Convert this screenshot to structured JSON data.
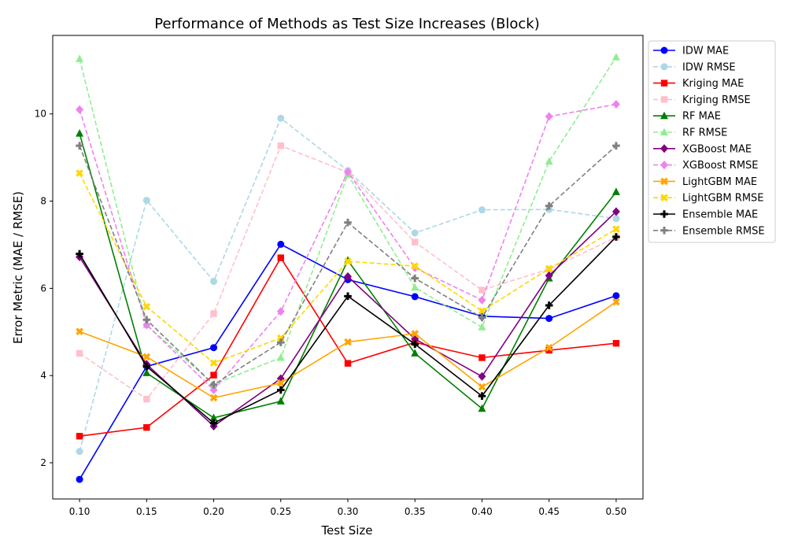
{
  "chart_data": {
    "type": "line",
    "title": "Performance of Methods as Test Size Increases (Block)",
    "xlabel": "Test Size",
    "ylabel": "Error Metric (MAE / RMSE)",
    "x": [
      0.1,
      0.15,
      0.2,
      0.25,
      0.3,
      0.35,
      0.4,
      0.45,
      0.5
    ],
    "x_tick_labels": [
      "0.10",
      "0.15",
      "0.20",
      "0.25",
      "0.30",
      "0.35",
      "0.40",
      "0.45",
      "0.50"
    ],
    "y_ticks": [
      2,
      4,
      6,
      8,
      10
    ],
    "xlim": [
      0.08,
      0.52
    ],
    "ylim": [
      1.17,
      11.8
    ],
    "grid": false,
    "legend_position": "outside-right-top",
    "series": [
      {
        "name": "IDW MAE",
        "color": "#0000ff",
        "dash": "solid",
        "marker": "circle",
        "values": [
          1.62,
          4.21,
          4.64,
          7.01,
          6.2,
          5.81,
          5.36,
          5.31,
          5.83
        ]
      },
      {
        "name": "IDW RMSE",
        "color": "#add8e6",
        "dash": "dashed",
        "marker": "circle",
        "values": [
          2.26,
          8.02,
          6.16,
          9.9,
          8.7,
          7.27,
          7.8,
          7.81,
          7.6
        ]
      },
      {
        "name": "Kriging MAE",
        "color": "#ff0000",
        "dash": "solid",
        "marker": "square",
        "values": [
          2.61,
          2.81,
          4.01,
          6.7,
          4.28,
          4.76,
          4.41,
          4.58,
          4.74
        ]
      },
      {
        "name": "Kriging RMSE",
        "color": "#ffc0cb",
        "dash": "dashed",
        "marker": "square",
        "values": [
          4.51,
          3.46,
          5.42,
          9.27,
          8.66,
          7.06,
          5.96,
          6.44,
          7.17
        ]
      },
      {
        "name": "RF MAE",
        "color": "#008000",
        "dash": "solid",
        "marker": "triangle",
        "values": [
          9.55,
          4.06,
          3.03,
          3.41,
          6.64,
          4.51,
          3.24,
          6.23,
          8.21
        ]
      },
      {
        "name": "RF RMSE",
        "color": "#90ee90",
        "dash": "dashed",
        "marker": "triangle",
        "values": [
          11.26,
          5.16,
          3.8,
          4.41,
          8.61,
          6.02,
          5.11,
          8.91,
          11.3
        ]
      },
      {
        "name": "XGBoost MAE",
        "color": "#800080",
        "dash": "solid",
        "marker": "diamond",
        "values": [
          6.72,
          4.26,
          2.84,
          3.93,
          6.27,
          4.84,
          3.98,
          6.29,
          7.76
        ]
      },
      {
        "name": "XGBoost RMSE",
        "color": "#ee82ee",
        "dash": "dashed",
        "marker": "diamond",
        "values": [
          10.1,
          5.16,
          3.67,
          5.47,
          8.67,
          6.47,
          5.73,
          9.94,
          10.22
        ]
      },
      {
        "name": "LightGBM MAE",
        "color": "#ffa500",
        "dash": "solid",
        "marker": "x",
        "values": [
          5.01,
          4.43,
          3.49,
          3.83,
          4.77,
          4.96,
          3.74,
          4.64,
          5.69
        ]
      },
      {
        "name": "LightGBM RMSE",
        "color": "#ffd700",
        "dash": "dashed",
        "marker": "x",
        "values": [
          8.64,
          5.58,
          4.29,
          4.86,
          6.62,
          6.51,
          5.48,
          6.45,
          7.36
        ]
      },
      {
        "name": "Ensemble MAE",
        "color": "#000000",
        "dash": "solid",
        "marker": "plus",
        "values": [
          6.79,
          4.21,
          2.91,
          3.67,
          5.82,
          4.72,
          3.53,
          5.61,
          7.18
        ]
      },
      {
        "name": "Ensemble RMSE",
        "color": "#808080",
        "dash": "dashed",
        "marker": "plus",
        "values": [
          9.27,
          5.28,
          3.79,
          4.76,
          7.51,
          6.23,
          5.33,
          7.89,
          9.27
        ]
      }
    ]
  }
}
